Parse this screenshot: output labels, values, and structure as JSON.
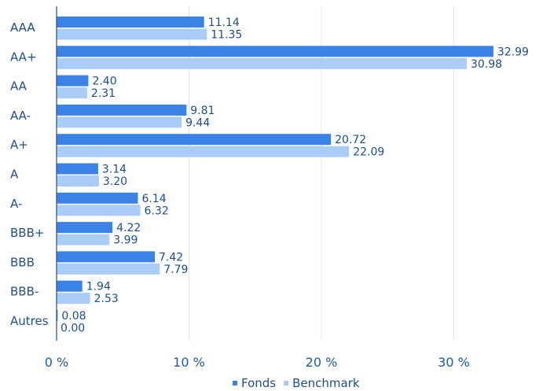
{
  "chart_data": {
    "type": "bar",
    "orientation": "horizontal",
    "categories": [
      "AAA",
      "AA+",
      "AA",
      "AA-",
      "A+",
      "A",
      "A-",
      "BBB+",
      "BBB",
      "BBB-",
      "Autres"
    ],
    "series": [
      {
        "name": "Fonds",
        "color": "#3b82e6",
        "values": [
          11.14,
          32.99,
          2.4,
          9.81,
          20.72,
          3.14,
          6.14,
          4.22,
          7.42,
          1.94,
          0.08
        ],
        "labels": [
          "11.14",
          "32.99",
          "2.40",
          "9.81",
          "20.72",
          "3.14",
          "6.14",
          "4.22",
          "7.42",
          "1.94",
          "0.08"
        ]
      },
      {
        "name": "Benchmark",
        "color": "#a9cdf7",
        "values": [
          11.35,
          30.98,
          2.31,
          9.44,
          22.09,
          3.2,
          6.32,
          3.99,
          7.79,
          2.53,
          0.0
        ],
        "labels": [
          "11.35",
          "30.98",
          "2.31",
          "9.44",
          "22.09",
          "3.20",
          "6.32",
          "3.99",
          "7.79",
          "2.53",
          "0.00"
        ]
      }
    ],
    "xlim": [
      0,
      36
    ],
    "x_ticks": [
      0,
      10,
      20,
      30
    ],
    "x_tick_labels": [
      "0 %",
      "10 %",
      "20 %",
      "30 %"
    ],
    "grid": true,
    "legend": "bottom-center"
  }
}
